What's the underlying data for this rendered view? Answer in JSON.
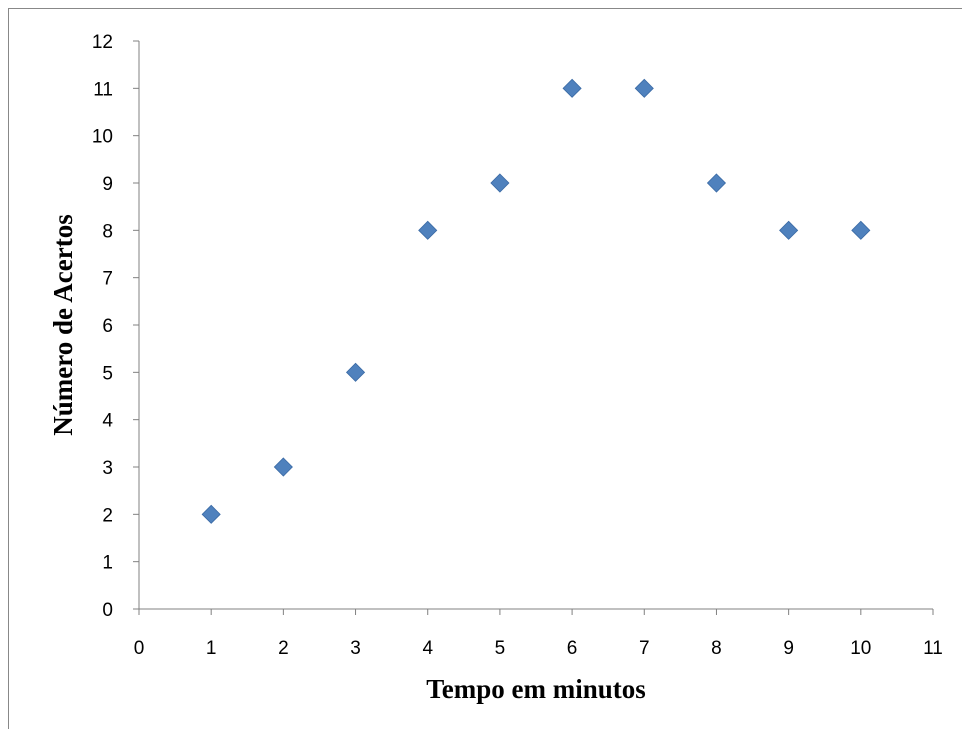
{
  "chart_data": {
    "type": "scatter",
    "title": "",
    "xlabel": "Tempo em minutos",
    "ylabel": "Número de Acertos",
    "xlim": [
      0,
      11
    ],
    "ylim": [
      0,
      12
    ],
    "xticks": [
      0,
      1,
      2,
      3,
      4,
      5,
      6,
      7,
      8,
      9,
      10,
      11
    ],
    "yticks": [
      0,
      1,
      2,
      3,
      4,
      5,
      6,
      7,
      8,
      9,
      10,
      11,
      12
    ],
    "grid": false,
    "legend": "none",
    "marker": "diamond",
    "colors": {
      "marker": "#4F81BD",
      "marker_edge": "#3A6AA5",
      "axis": "#808080"
    },
    "series": [
      {
        "x": [
          1,
          2,
          3,
          4,
          5,
          6,
          7,
          8,
          9,
          10
        ],
        "y": [
          2,
          3,
          5,
          8,
          9,
          11,
          11,
          9,
          8,
          8
        ]
      }
    ]
  }
}
